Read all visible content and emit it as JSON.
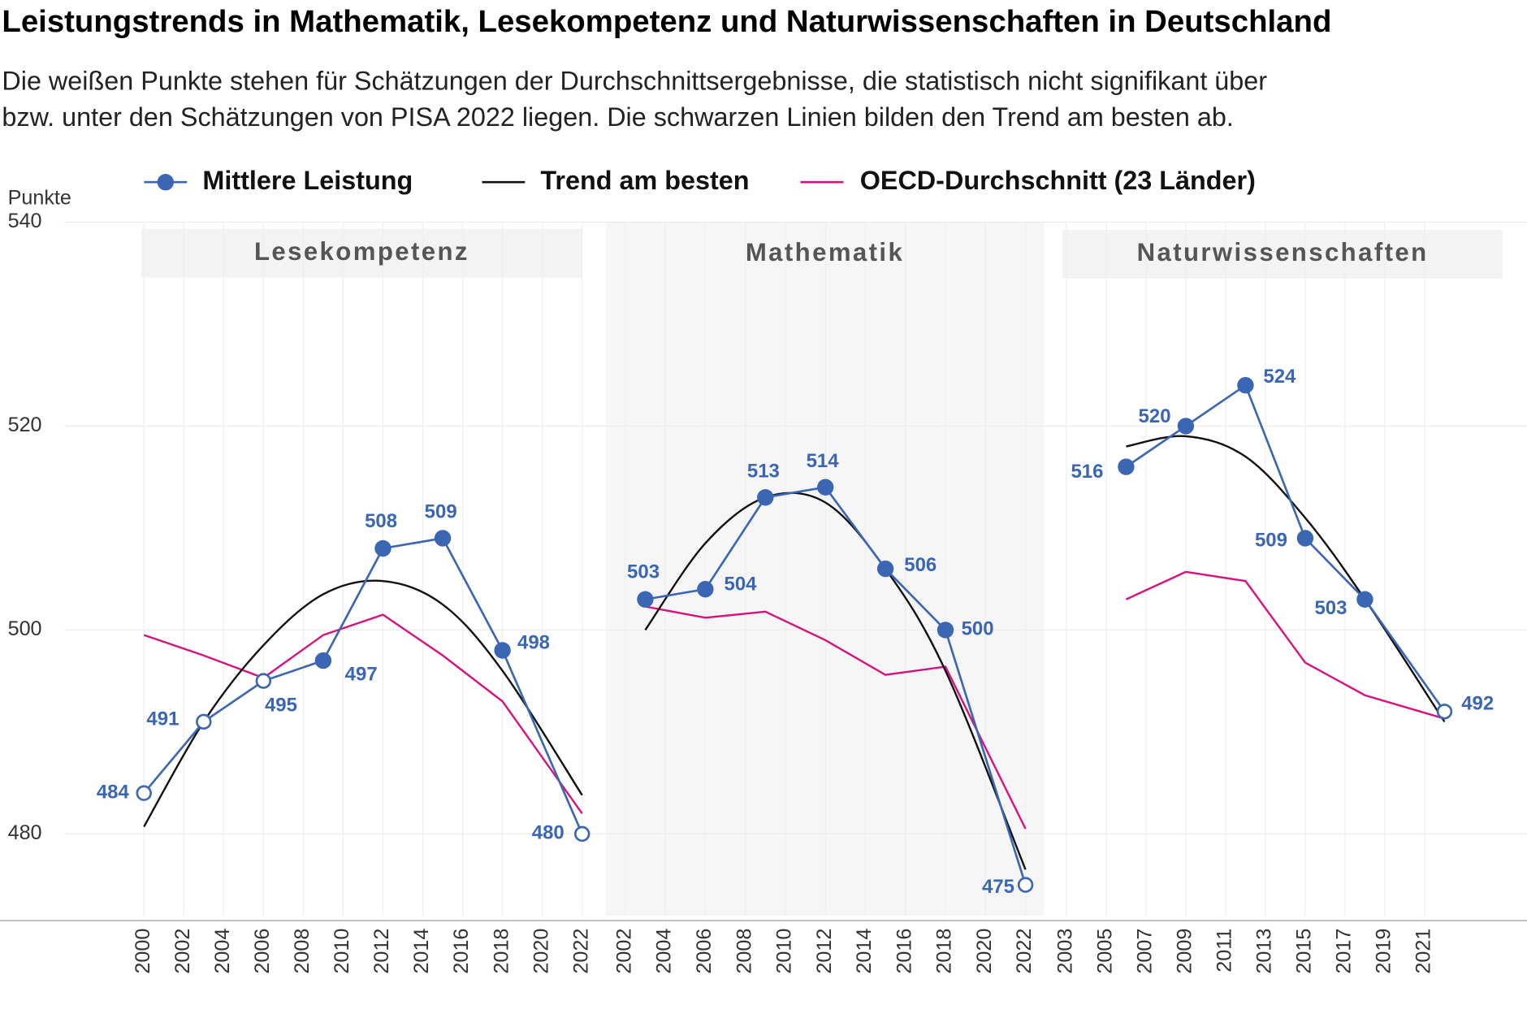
{
  "chart_data": {
    "type": "line",
    "title": "Leistungstrends in Mathematik, Lesekompetenz und Naturwissenschaften in Deutschland",
    "subtitle": [
      "Die weißen Punkte stehen für Schätzungen der Durchschnittsergebnisse, die statistisch nicht signifikant über",
      "bzw. unter den Schätzungen von PISA 2022 liegen. Die schwarzen Linien bilden den Trend am besten ab."
    ],
    "y_label": "Punkte",
    "ylim": [
      471.5,
      540
    ],
    "yticks": [
      480,
      500,
      520,
      540
    ],
    "grid": true,
    "series": [
      {
        "name": "Mittlere Leistung",
        "color": "#3a66b3",
        "marker": true
      },
      {
        "name": "Trend am besten",
        "color": "#111111",
        "marker": false
      },
      {
        "name": "OECD-Durchschnitt (23 Länder)",
        "color": "#d6127e",
        "marker": false
      }
    ],
    "panels": [
      {
        "title": "Lesekompetenz",
        "x": [
          2000,
          2003,
          2006,
          2009,
          2012,
          2015,
          2018,
          2022
        ],
        "xlim": [
          1996,
          2022.5
        ],
        "xticks": [
          2000,
          2002,
          2004,
          2006,
          2008,
          2010,
          2012,
          2014,
          2016,
          2018,
          2020,
          2022
        ],
        "series": [
          {
            "values": [
              484,
              491,
              495,
              497,
              508,
              509,
              498,
              480
            ],
            "hollow": [
              true,
              true,
              true,
              false,
              false,
              false,
              false,
              true
            ]
          },
          {
            "values": [
              480.7,
              491,
              498.5,
              503.5,
              504.8,
              502.5,
              496,
              483.8
            ]
          },
          {
            "values": [
              499.5,
              497.5,
              495.3,
              499.5,
              501.5,
              497.5,
              493,
              482
            ]
          }
        ]
      },
      {
        "title": "Mathematik",
        "x": [
          2003,
          2006,
          2009,
          2012,
          2015,
          2018,
          2022
        ],
        "xlim": [
          2001,
          2023
        ],
        "xticks": [
          2002,
          2004,
          2006,
          2008,
          2010,
          2012,
          2014,
          2016,
          2018,
          2020,
          2022
        ],
        "shaded": true,
        "series": [
          {
            "values": [
              503,
              504,
              513,
              514,
              506,
              500,
              475
            ],
            "hollow": [
              false,
              false,
              false,
              false,
              false,
              false,
              true
            ]
          },
          {
            "values": [
              500,
              508.5,
              513,
              512.5,
              506,
              496,
              476.5
            ]
          },
          {
            "values": [
              502.3,
              501.2,
              501.8,
              499,
              495.6,
              496.4,
              480.5
            ]
          }
        ]
      },
      {
        "title": "Naturwissenschaften",
        "x": [
          2006,
          2009,
          2012,
          2015,
          2018,
          2022
        ],
        "xlim": [
          2002.5,
          2025
        ],
        "xticks": [
          2003,
          2005,
          2007,
          2009,
          2011,
          2013,
          2015,
          2017,
          2019,
          2021
        ],
        "series": [
          {
            "values": [
              516,
              520,
              524,
              509,
              503,
              492
            ],
            "hollow": [
              false,
              false,
              false,
              false,
              false,
              true
            ]
          },
          {
            "values": [
              518,
              519,
              517,
              511,
              503,
              491
            ]
          },
          {
            "values": [
              503,
              505.7,
              504.8,
              496.8,
              493.6,
              491.3
            ]
          }
        ]
      }
    ]
  }
}
